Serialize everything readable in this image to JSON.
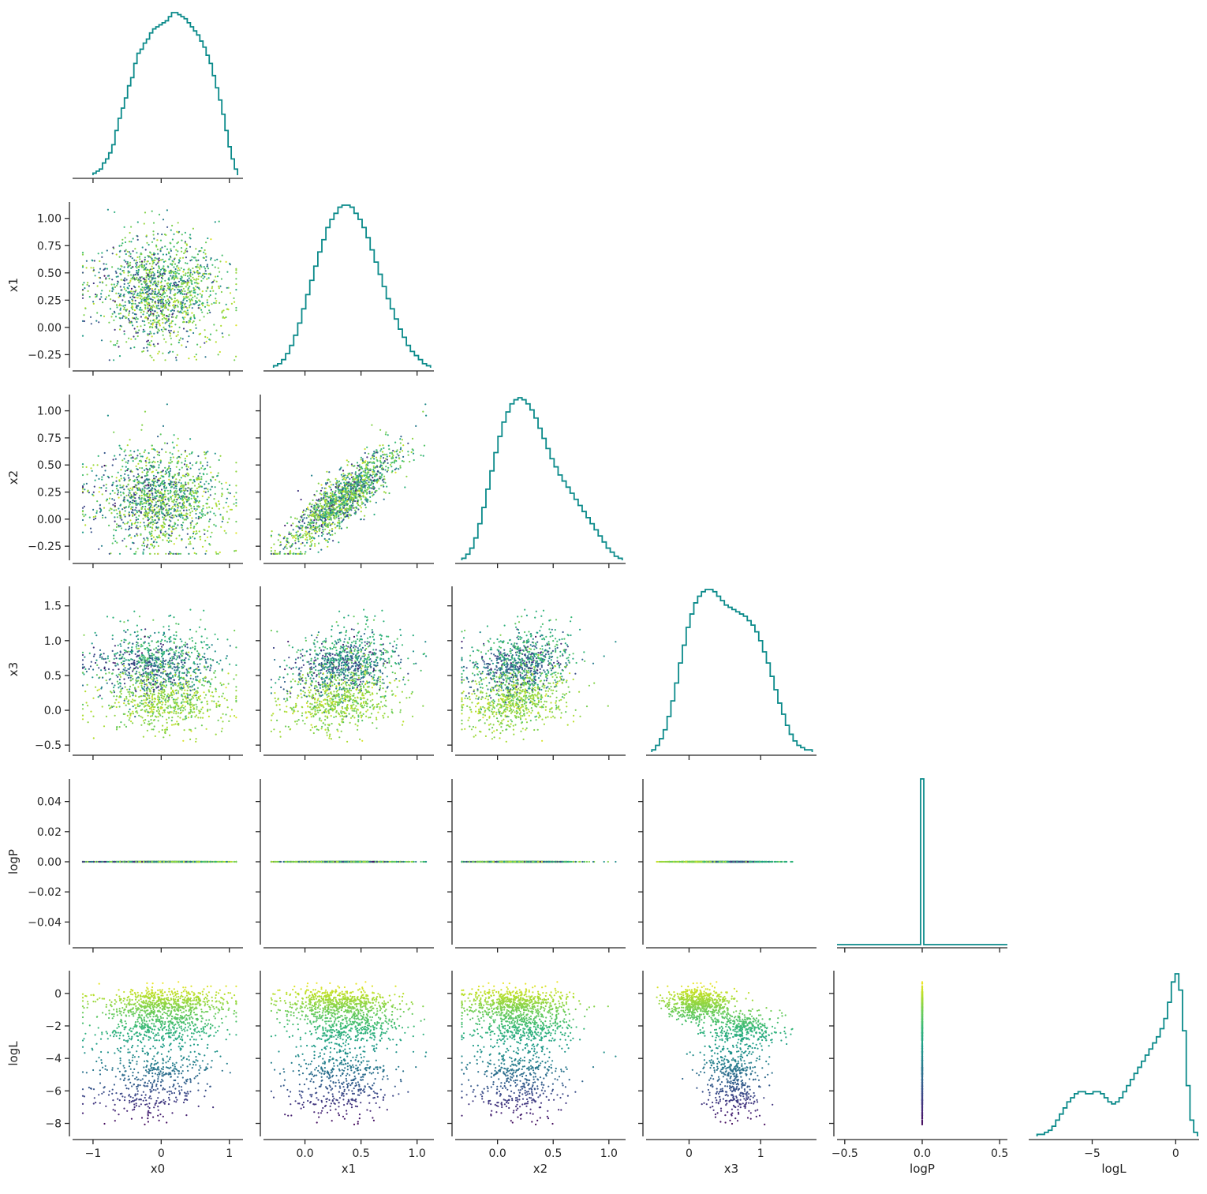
{
  "chart_data": {
    "type": "scatter",
    "kind": "corner-plot",
    "variables": [
      "x0",
      "x1",
      "x2",
      "x3",
      "logP",
      "logL"
    ],
    "color_by": "logL",
    "colormap": "viridis",
    "histogram_color": "#0a8a8a",
    "axes": {
      "x0": {
        "range": [
          -1.3,
          1.2
        ],
        "ticks": [
          -1,
          0,
          1
        ],
        "tick_labels": [
          "−1",
          "0",
          "1"
        ]
      },
      "x1": {
        "range": [
          -0.37,
          1.15
        ],
        "ticks": [
          0,
          0.5,
          1
        ],
        "tick_labels": [
          "0.0",
          "0.5",
          "1.0"
        ],
        "y_ticks": [
          -0.25,
          0,
          0.25,
          0.5,
          0.75,
          1.0
        ],
        "y_tick_labels": [
          "−0.25",
          "0.00",
          "0.25",
          "0.50",
          "0.75",
          "1.00"
        ]
      },
      "x2": {
        "range": [
          -0.38,
          1.15
        ],
        "ticks": [
          0,
          0.5,
          1
        ],
        "tick_labels": [
          "0.0",
          "0.5",
          "1.0"
        ],
        "y_ticks": [
          -0.25,
          0,
          0.25,
          0.5,
          0.75,
          1.0
        ],
        "y_tick_labels": [
          "−0.25",
          "0.00",
          "0.25",
          "0.50",
          "0.75",
          "1.00"
        ]
      },
      "x3": {
        "range": [
          -0.6,
          1.78
        ],
        "ticks": [
          0,
          1
        ],
        "tick_labels": [
          "0",
          "1"
        ],
        "y_ticks": [
          -0.5,
          0,
          0.5,
          1.0,
          1.5
        ],
        "y_tick_labels": [
          "−0.5",
          "0.0",
          "0.5",
          "1.0",
          "1.5"
        ]
      },
      "logP": {
        "range": [
          -0.055,
          0.055
        ],
        "ticks": [
          -0.5,
          0,
          0.5
        ],
        "tick_range": [
          -0.55,
          0.55
        ],
        "tick_labels": [
          "−0.5",
          "0.0",
          "0.5"
        ],
        "y_ticks": [
          -0.04,
          -0.02,
          0,
          0.02,
          0.04
        ],
        "y_tick_labels": [
          "−0.04",
          "−0.02",
          "0.00",
          "0.02",
          "0.04"
        ]
      },
      "logL": {
        "range": [
          -8.8,
          1.4
        ],
        "ticks": [
          -5,
          0
        ],
        "tick_labels": [
          "−5",
          "0"
        ],
        "y_ticks": [
          -8,
          -6,
          -4,
          -2,
          0
        ],
        "y_tick_labels": [
          "−8",
          "−6",
          "−4",
          "−2",
          "0"
        ]
      }
    },
    "histograms": {
      "x0": [
        1,
        2,
        3,
        6,
        8,
        11,
        15,
        22,
        28,
        33,
        38,
        44,
        48,
        55,
        60,
        62,
        65,
        67,
        70,
        72,
        73,
        74,
        75,
        76,
        78,
        80,
        80,
        79,
        78,
        77,
        75,
        73,
        71,
        69,
        66,
        63,
        59,
        55,
        49,
        43,
        37,
        30,
        22,
        14,
        8,
        3
      ],
      "x1": [
        1,
        2,
        4,
        7,
        11,
        16,
        22,
        29,
        36,
        43,
        50,
        57,
        63,
        69,
        73,
        76,
        79,
        80,
        80,
        79,
        76,
        73,
        69,
        64,
        58,
        52,
        46,
        40,
        34,
        29,
        24,
        19,
        15,
        11,
        8,
        6,
        4,
        2,
        1
      ],
      "x2": [
        1,
        3,
        6,
        11,
        18,
        26,
        35,
        44,
        53,
        61,
        68,
        73,
        77,
        79,
        80,
        79,
        77,
        74,
        70,
        65,
        60,
        55,
        50,
        46,
        42,
        39,
        36,
        33,
        30,
        27,
        24,
        21,
        18,
        15,
        12,
        9,
        6,
        4,
        2,
        1
      ],
      "x3": [
        1,
        3,
        6,
        10,
        16,
        23,
        31,
        40,
        48,
        56,
        62,
        67,
        70,
        72,
        73,
        73,
        72,
        70,
        68,
        66,
        65,
        64,
        63,
        62,
        61,
        59,
        57,
        54,
        50,
        45,
        40,
        34,
        28,
        22,
        17,
        12,
        8,
        5,
        3,
        2,
        1,
        1
      ],
      "logP": {
        "spike_at": 0
      },
      "logL": [
        1,
        1,
        2,
        3,
        5,
        8,
        11,
        14,
        17,
        19,
        21,
        22,
        22,
        21,
        21,
        22,
        22,
        21,
        19,
        17,
        16,
        17,
        19,
        22,
        25,
        28,
        31,
        34,
        37,
        40,
        43,
        46,
        49,
        53,
        58,
        66,
        76,
        80,
        72,
        52,
        25,
        8,
        2
      ]
    },
    "logP_value": 0
  }
}
